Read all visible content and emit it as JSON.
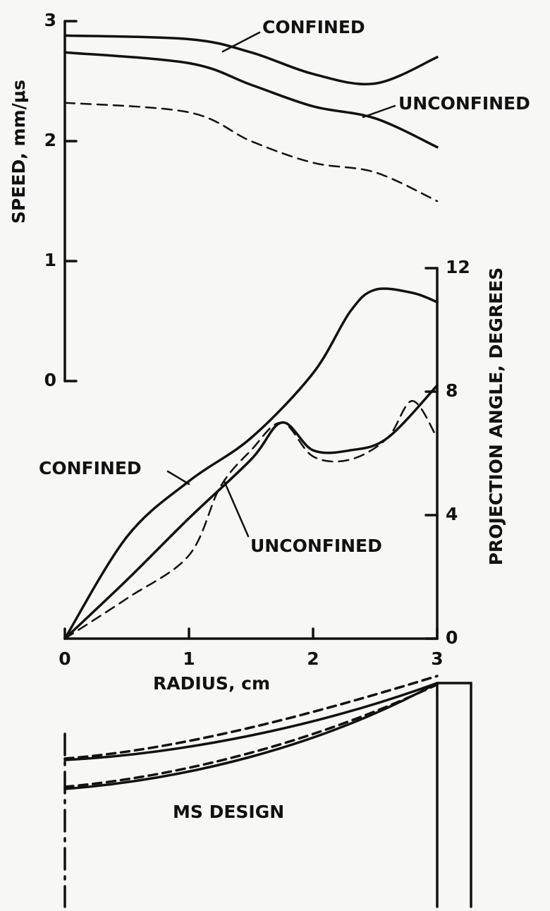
{
  "chart_data": {
    "type": "line",
    "ylabel": "SPEED, mm/μs",
    "y2label": "PROJECTION ANGLE, DEGREES",
    "xlabel": "RADIUS, cm",
    "xlim": [
      0,
      3
    ],
    "xticks": [
      0,
      1,
      2,
      3
    ],
    "ylim": [
      0,
      3
    ],
    "yticks": [
      0,
      1,
      2,
      3
    ],
    "y2lim": [
      0,
      12
    ],
    "y2ticks": [
      0,
      4,
      8,
      12
    ],
    "series": [
      {
        "name": "CONFINED",
        "color": "#111111",
        "line_style": "solid",
        "x": [
          0,
          1,
          1.5,
          2,
          2.5,
          3
        ],
        "values": [
          2.88,
          2.85,
          2.74,
          2.56,
          2.48,
          2.7
        ]
      },
      {
        "name": "UNCONFINED",
        "color": "#111111",
        "line_style": "solid",
        "x": [
          0,
          1,
          1.5,
          2,
          2.5,
          3
        ],
        "values": [
          2.74,
          2.65,
          2.47,
          2.29,
          2.19,
          1.95
        ]
      },
      {
        "color": "#111111",
        "line_style": "dashed",
        "x": [
          0,
          1,
          1.5,
          2,
          2.5,
          3
        ],
        "values": [
          2.32,
          2.24,
          2.0,
          1.82,
          1.74,
          1.5
        ]
      },
      {
        "name": "CONFINED",
        "color": "#111111",
        "line_style": "solid",
        "axis": "y2",
        "x": [
          0,
          0.5,
          1,
          1.5,
          2,
          2.3,
          2.5,
          2.8,
          3
        ],
        "values": [
          0,
          3.3,
          5.1,
          6.5,
          8.6,
          10.6,
          11.3,
          11.2,
          10.9
        ]
      },
      {
        "name": "UNCONFINED",
        "color": "#111111",
        "line_style": "solid",
        "axis": "y2",
        "x": [
          0,
          0.5,
          1,
          1.5,
          1.75,
          2,
          2.3,
          2.6,
          3
        ],
        "values": [
          0,
          1.9,
          3.9,
          5.8,
          7.0,
          6.1,
          6.1,
          6.5,
          8.2
        ]
      },
      {
        "color": "#111111",
        "line_style": "dashed",
        "axis": "y2",
        "x": [
          0,
          0.5,
          1,
          1.25,
          1.5,
          1.75,
          2,
          2.3,
          2.6,
          2.8,
          3
        ],
        "values": [
          0,
          1.3,
          2.7,
          4.9,
          6.1,
          7.0,
          5.9,
          5.8,
          6.5,
          7.7,
          6.5
        ]
      }
    ]
  },
  "drawing": {
    "label": "MS DESIGN"
  }
}
